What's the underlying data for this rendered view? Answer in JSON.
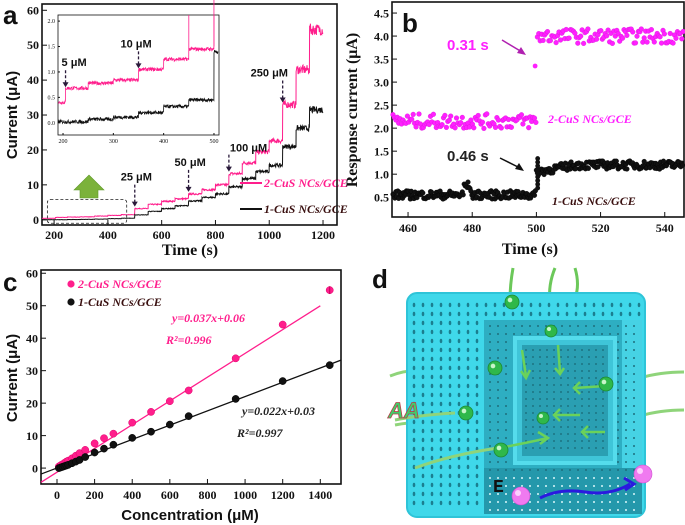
{
  "colors": {
    "pink": "#ff1e8c",
    "magenta": "#ff20ff",
    "black": "#111111",
    "cyan": "#3fd8ea",
    "green": "#2fb84a"
  },
  "chart_data": [
    {
      "panel": "a",
      "type": "line",
      "xlabel": "Time (s)",
      "ylabel": "Current (μA)",
      "xlim": [
        155,
        1252
      ],
      "ylim": [
        -1.5,
        61.8
      ],
      "xticks": [
        200,
        400,
        600,
        800,
        1000,
        1200
      ],
      "yticks": [
        0,
        10,
        20,
        30,
        40,
        50,
        60
      ],
      "legend": "bottom-right",
      "series": [
        {
          "name": "2-CuS NCs/GCE",
          "color": "#ff1e8c",
          "steps": [
            [
              155,
              0.4
            ],
            [
              205,
              0.68
            ],
            [
              250,
              0.78
            ],
            [
              300,
              0.84
            ],
            [
              350,
              1.05
            ],
            [
              400,
              1.25
            ],
            [
              450,
              1.45
            ],
            [
              500,
              3.2
            ],
            [
              550,
              4.4
            ],
            [
              600,
              5.3
            ],
            [
              650,
              6.0
            ],
            [
              700,
              7.4
            ],
            [
              750,
              8.6
            ],
            [
              800,
              10.0
            ],
            [
              850,
              13.2
            ],
            [
              900,
              16.3
            ],
            [
              950,
              19.4
            ],
            [
              1000,
              22.6
            ],
            [
              1050,
              33.0
            ],
            [
              1100,
              43.0
            ],
            [
              1150,
              54.5
            ],
            [
              1200,
              50
            ]
          ]
        },
        {
          "name": "1-CuS NCs/GCE",
          "color": "#111111",
          "steps": [
            [
              155,
              0.02
            ],
            [
              250,
              0.07
            ],
            [
              300,
              0.11
            ],
            [
              350,
              0.2
            ],
            [
              400,
              0.32
            ],
            [
              450,
              0.45
            ],
            [
              500,
              1.4
            ],
            [
              550,
              2.4
            ],
            [
              600,
              3.2
            ],
            [
              650,
              4.0
            ],
            [
              700,
              5.4
            ],
            [
              750,
              6.4
            ],
            [
              800,
              7.4
            ],
            [
              850,
              9.4
            ],
            [
              900,
              11.8
            ],
            [
              950,
              13.8
            ],
            [
              1000,
              15.6
            ],
            [
              1050,
              21.0
            ],
            [
              1100,
              26.2
            ],
            [
              1150,
              31.5
            ],
            [
              1200,
              31.5
            ]
          ]
        }
      ],
      "annotations": [
        {
          "text": "25 μM",
          "x": 500
        },
        {
          "text": "50 μM",
          "x": 700
        },
        {
          "text": "100 μM",
          "x": 850
        },
        {
          "text": "250 μM",
          "x": 1050
        }
      ],
      "inset": {
        "xlim": [
          190,
          510
        ],
        "ylim": [
          -0.24,
          2.12
        ],
        "xticks": [
          200,
          300,
          400,
          500
        ],
        "yticks": [
          "0.0",
          "0.5",
          "1.0",
          "1.5",
          "2.0"
        ],
        "annotations": [
          {
            "text": "5 μM",
            "x": 205
          },
          {
            "text": "10 μM",
            "x": 350
          }
        ]
      }
    },
    {
      "panel": "b",
      "type": "scatter",
      "xlabel": "Time (s)",
      "ylabel": "Response current (μA)",
      "xlim": [
        455,
        546
      ],
      "ylim": [
        0.07,
        4.74
      ],
      "xticks": [
        460,
        480,
        500,
        520,
        540
      ],
      "yticks": [
        "0.5",
        "1.0",
        "1.5",
        "2.0",
        "2.5",
        "3.0",
        "3.5",
        "4.0",
        "4.5"
      ],
      "series": [
        {
          "name": "2-CuS NCs/GCE",
          "color": "#ff20ff",
          "before": 2.15,
          "after": 4.0,
          "step_time": 500,
          "response_time": "0.31 s"
        },
        {
          "name": "1-CuS NCs/GCE",
          "color": "#111111",
          "before": 0.55,
          "after": 1.2,
          "step_time": 500,
          "response_time": "0.46 s"
        }
      ]
    },
    {
      "panel": "c",
      "type": "scatter",
      "xlabel": "Concentration (μM)",
      "ylabel": "Current (μA)",
      "xlim": [
        -85,
        1510
      ],
      "ylim": [
        -4.9,
        61
      ],
      "xticks": [
        0,
        200,
        400,
        600,
        800,
        1000,
        1200,
        1400
      ],
      "yticks": [
        0,
        10,
        20,
        30,
        40,
        50,
        60
      ],
      "legend": "top-left",
      "series": [
        {
          "name": "2-CuS NCs/GCE",
          "color": "#ff1e8c",
          "equation": "y=0.037x+0.06",
          "r2": "R²=0.996",
          "slope": 0.037,
          "intercept": 0.06,
          "x": [
            10,
            20,
            30,
            40,
            50,
            60,
            80,
            100,
            120,
            150,
            200,
            250,
            300,
            400,
            500,
            600,
            700,
            950,
            1200,
            1450
          ],
          "y": [
            0.5,
            0.9,
            1.2,
            1.6,
            2.0,
            2.3,
            3.0,
            3.8,
            4.6,
            5.6,
            7.6,
            9.2,
            10.6,
            14.0,
            17.3,
            20.6,
            23.9,
            33.8,
            44.2,
            54.8
          ]
        },
        {
          "name": "1-CuS NCs/GCE",
          "color": "#111111",
          "equation": "y=0.022x+0.03",
          "r2": "R²=0.997",
          "slope": 0.022,
          "intercept": 0.03,
          "x": [
            10,
            20,
            30,
            40,
            50,
            60,
            80,
            100,
            120,
            150,
            200,
            250,
            300,
            400,
            500,
            600,
            700,
            950,
            1200,
            1450
          ],
          "y": [
            0.0,
            0.2,
            0.4,
            0.6,
            0.8,
            1.0,
            1.5,
            2.0,
            2.5,
            3.4,
            4.8,
            6.0,
            7.2,
            9.3,
            11.2,
            13.4,
            16.0,
            21.3,
            26.8,
            31.7
          ]
        }
      ]
    }
  ],
  "panel_d": {
    "label": "d",
    "analyte": "AA",
    "electrode": "E"
  },
  "panel_labels": {
    "a": "a",
    "b": "b",
    "c": "c"
  }
}
